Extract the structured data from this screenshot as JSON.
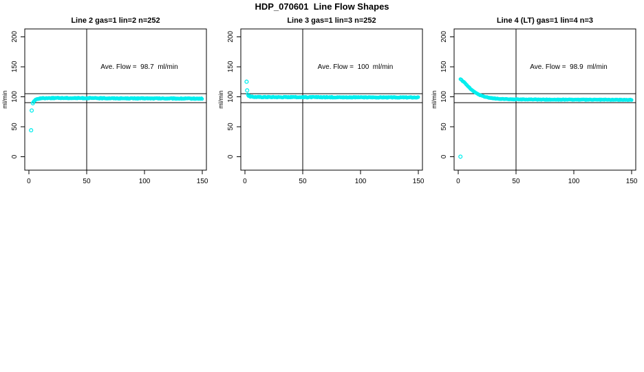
{
  "title": "HDP_070601  Line Flow Shapes",
  "colors": {
    "points": "#00EEEE",
    "axis": "#000000",
    "text": "#000000",
    "background": "#FFFFFF"
  },
  "chart_data": [
    {
      "type": "scatter",
      "title": "Line 2 gas=1 lin=2 n=252",
      "line": 2,
      "gas": 1,
      "lin": 2,
      "n": 252,
      "ave_flow_ml_min": 98.7,
      "annotation": {
        "prefix": "Ave. Flow =",
        "value": "98.7",
        "suffix": "ml/min"
      },
      "ylabel": "ml/min",
      "xticks": [
        0,
        50,
        100,
        150
      ],
      "yticks": [
        0,
        50,
        100,
        150,
        200
      ],
      "xlim": [
        -3.5,
        153.5
      ],
      "ylim": [
        -22.5,
        213
      ],
      "vline_x": 50,
      "hlines_y": [
        105,
        90
      ],
      "isolated_points": [
        [
          2,
          44
        ],
        [
          2.5,
          77
        ],
        [
          3.5,
          89
        ]
      ],
      "band_keypoints": [
        [
          4,
          91.5
        ],
        [
          5,
          93.5
        ],
        [
          6,
          95
        ],
        [
          7,
          96
        ],
        [
          8,
          96.6
        ],
        [
          10,
          97.2
        ],
        [
          12,
          97.5
        ],
        [
          15,
          97.7
        ],
        [
          20,
          97.8
        ],
        [
          30,
          97.8
        ],
        [
          40,
          97.7
        ],
        [
          60,
          97.5
        ],
        [
          80,
          97.3
        ],
        [
          100,
          97.2
        ],
        [
          120,
          97
        ],
        [
          150,
          96.8
        ]
      ],
      "band_x_start": 4,
      "band_x_end": 150,
      "band_step": 0.55,
      "jitter": 0.7
    },
    {
      "type": "scatter",
      "title": "Line 3 gas=1 lin=3 n=252",
      "line": 3,
      "gas": 1,
      "lin": 3,
      "n": 252,
      "ave_flow_ml_min": 100,
      "annotation": {
        "prefix": "Ave. Flow =",
        "value": "100",
        "suffix": "ml/min"
      },
      "ylabel": "ml/min",
      "xticks": [
        0,
        50,
        100,
        150
      ],
      "yticks": [
        0,
        50,
        100,
        150,
        200
      ],
      "xlim": [
        -3.5,
        153.5
      ],
      "ylim": [
        -22.5,
        213
      ],
      "vline_x": 50,
      "hlines_y": [
        105,
        90
      ],
      "isolated_points": [
        [
          1.5,
          125
        ],
        [
          2,
          110.5
        ]
      ],
      "band_keypoints": [
        [
          2.5,
          104
        ],
        [
          3,
          102
        ],
        [
          4,
          100.8
        ],
        [
          5,
          100.2
        ],
        [
          7,
          99.8
        ],
        [
          10,
          99.6
        ],
        [
          15,
          99.5
        ],
        [
          25,
          99.4
        ],
        [
          50,
          99.3
        ],
        [
          80,
          99.1
        ],
        [
          110,
          99
        ],
        [
          150,
          98.8
        ]
      ],
      "band_x_start": 2.5,
      "band_x_end": 150,
      "band_step": 0.55,
      "jitter": 0.7
    },
    {
      "type": "scatter",
      "title": "Line 4 (LT) gas=1 lin=4 n=3",
      "line": 4,
      "line_note": "LT",
      "gas": 1,
      "lin": 4,
      "n": 3,
      "ave_flow_ml_min": 98.9,
      "annotation": {
        "prefix": "Ave. Flow =",
        "value": "98.9",
        "suffix": "ml/min"
      },
      "ylabel": "ml/min",
      "xticks": [
        0,
        50,
        100,
        150
      ],
      "yticks": [
        0,
        50,
        100,
        150,
        200
      ],
      "xlim": [
        -3.5,
        153.5
      ],
      "ylim": [
        -22.5,
        213
      ],
      "vline_x": 50,
      "hlines_y": [
        105,
        90
      ],
      "isolated_points": [
        [
          2,
          0
        ]
      ],
      "band_keypoints": [
        [
          2,
          129.5
        ],
        [
          3,
          128
        ],
        [
          4,
          126
        ],
        [
          6,
          122.5
        ],
        [
          8,
          118.5
        ],
        [
          10,
          114.5
        ],
        [
          12,
          111
        ],
        [
          14,
          108
        ],
        [
          16,
          105.5
        ],
        [
          18,
          103.5
        ],
        [
          20,
          101.8
        ],
        [
          23,
          100
        ],
        [
          26,
          98.6
        ],
        [
          30,
          97.4
        ],
        [
          35,
          96.5
        ],
        [
          40,
          96
        ],
        [
          50,
          95.6
        ],
        [
          60,
          95.4
        ],
        [
          80,
          95.2
        ],
        [
          100,
          95.1
        ],
        [
          120,
          95
        ],
        [
          150,
          94.8
        ]
      ],
      "band_x_start": 2,
      "band_x_end": 150,
      "band_step": 0.55,
      "jitter": 0.5
    }
  ]
}
